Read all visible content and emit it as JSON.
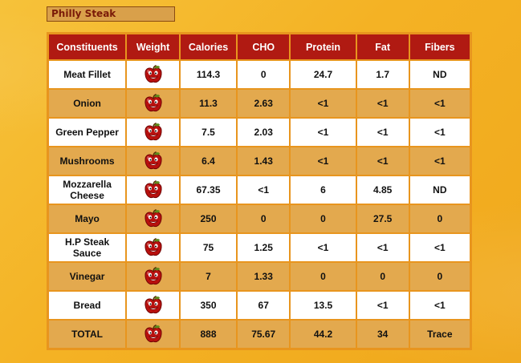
{
  "title": "Philly Steak",
  "headers": [
    "Constituents",
    "Weight",
    "Calories",
    "CHO",
    "Protein",
    "Fat",
    "Fibers"
  ],
  "icon": "apple-icon",
  "colors": {
    "header_bg": "#b01a12",
    "row_alt": "#e3a94e",
    "border": "#e8951e"
  },
  "rows": [
    {
      "name": [
        "Meat Fillet"
      ],
      "calories": "114.3",
      "cho": "0",
      "protein": "24.7",
      "fat": "1.7",
      "fibers": "ND"
    },
    {
      "name": [
        "Onion"
      ],
      "calories": "11.3",
      "cho": "2.63",
      "protein": "<1",
      "fat": "<1",
      "fibers": "<1"
    },
    {
      "name": [
        "Green Pepper"
      ],
      "calories": "7.5",
      "cho": "2.03",
      "protein": "<1",
      "fat": "<1",
      "fibers": "<1"
    },
    {
      "name": [
        "Mushrooms"
      ],
      "calories": "6.4",
      "cho": "1.43",
      "protein": "<1",
      "fat": "<1",
      "fibers": "<1"
    },
    {
      "name": [
        "Mozzarella",
        "Cheese"
      ],
      "calories": "67.35",
      "cho": "<1",
      "protein": "6",
      "fat": "4.85",
      "fibers": "ND"
    },
    {
      "name": [
        "Mayo"
      ],
      "calories": "250",
      "cho": "0",
      "protein": "0",
      "fat": "27.5",
      "fibers": "0"
    },
    {
      "name": [
        "H.P Steak",
        "Sauce"
      ],
      "calories": "75",
      "cho": "1.25",
      "protein": "<1",
      "fat": "<1",
      "fibers": "<1"
    },
    {
      "name": [
        "Vinegar"
      ],
      "calories": "7",
      "cho": "1.33",
      "protein": "0",
      "fat": "0",
      "fibers": "0"
    },
    {
      "name": [
        "Bread"
      ],
      "calories": "350",
      "cho": "67",
      "protein": "13.5",
      "fat": "<1",
      "fibers": "<1"
    },
    {
      "name": [
        "TOTAL"
      ],
      "calories": "888",
      "cho": "75.67",
      "protein": "44.2",
      "fat": "34",
      "fibers": "Trace"
    }
  ]
}
